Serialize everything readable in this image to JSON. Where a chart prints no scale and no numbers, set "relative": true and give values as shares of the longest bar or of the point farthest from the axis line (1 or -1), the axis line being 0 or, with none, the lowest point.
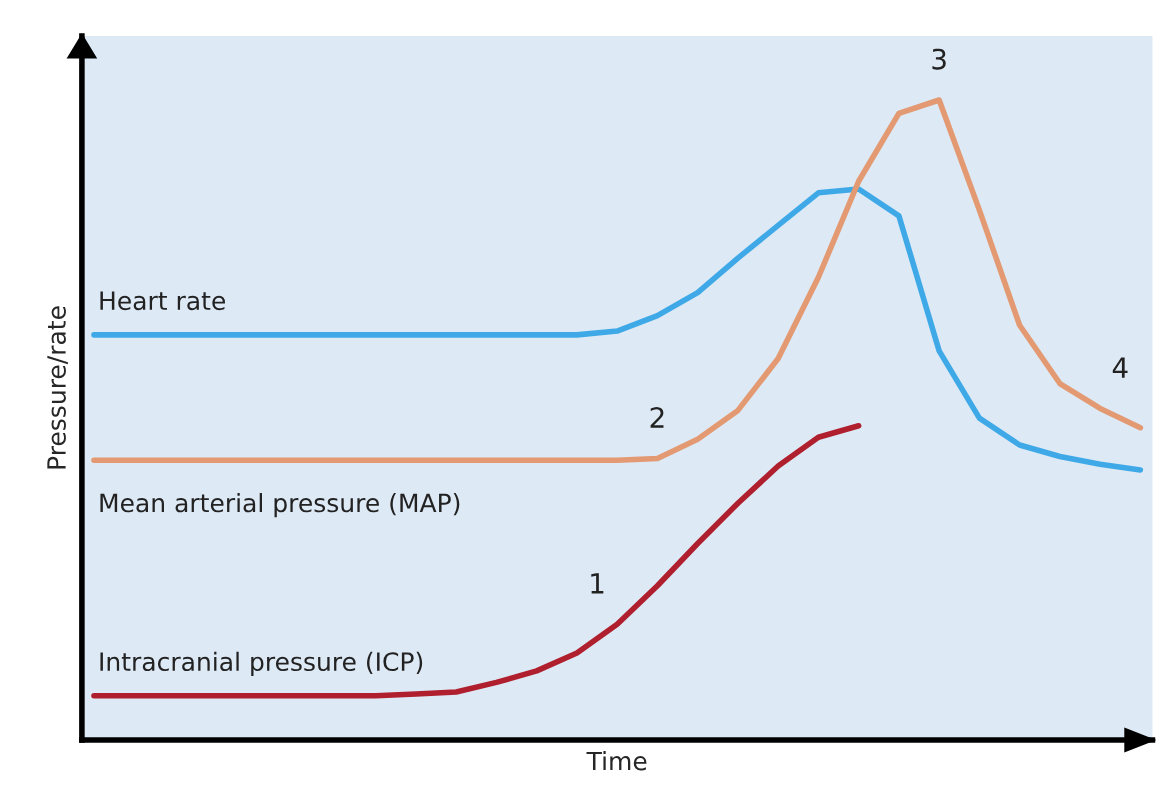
{
  "chart_data": {
    "type": "line",
    "relative": true,
    "xlabel": "Time",
    "ylabel": "Pressure/rate",
    "legend": false,
    "marker": "none",
    "line_style": "solid",
    "categories": [
      null,
      null,
      null,
      null,
      null,
      null,
      null,
      null,
      null,
      null,
      null,
      null,
      null,
      null,
      null,
      null,
      null,
      null,
      null,
      null,
      null,
      null,
      null,
      null,
      null,
      null,
      null
    ],
    "series": [
      {
        "name": "Heart rate",
        "color": "#3fa9e8",
        "values": [
          0.633,
          0.633,
          0.633,
          0.633,
          0.633,
          0.633,
          0.633,
          0.633,
          0.633,
          0.633,
          0.633,
          0.633,
          0.633,
          0.639,
          0.663,
          0.699,
          0.753,
          0.804,
          0.855,
          0.861,
          0.819,
          0.608,
          0.503,
          0.461,
          0.443,
          0.431,
          0.422
        ]
      },
      {
        "name": "Mean arterial pressure (MAP)",
        "color": "#e39a72",
        "values": [
          0.437,
          0.437,
          0.437,
          0.437,
          0.437,
          0.437,
          0.437,
          0.437,
          0.437,
          0.437,
          0.437,
          0.437,
          0.437,
          0.437,
          0.44,
          0.47,
          0.515,
          0.596,
          0.723,
          0.873,
          0.979,
          1.0,
          0.828,
          0.648,
          0.557,
          0.518,
          0.488
        ]
      },
      {
        "name": "Intracranial pressure (ICP)",
        "color": "#b01f2e",
        "values": [
          0.069,
          0.069,
          0.069,
          0.069,
          0.069,
          0.069,
          0.069,
          0.069,
          0.072,
          0.075,
          0.09,
          0.108,
          0.136,
          0.181,
          0.241,
          0.307,
          0.37,
          0.428,
          0.473,
          0.491,
          null,
          null,
          null,
          null,
          null,
          null,
          null
        ]
      }
    ],
    "annotations": [
      "1",
      "2",
      "3",
      "4"
    ]
  }
}
